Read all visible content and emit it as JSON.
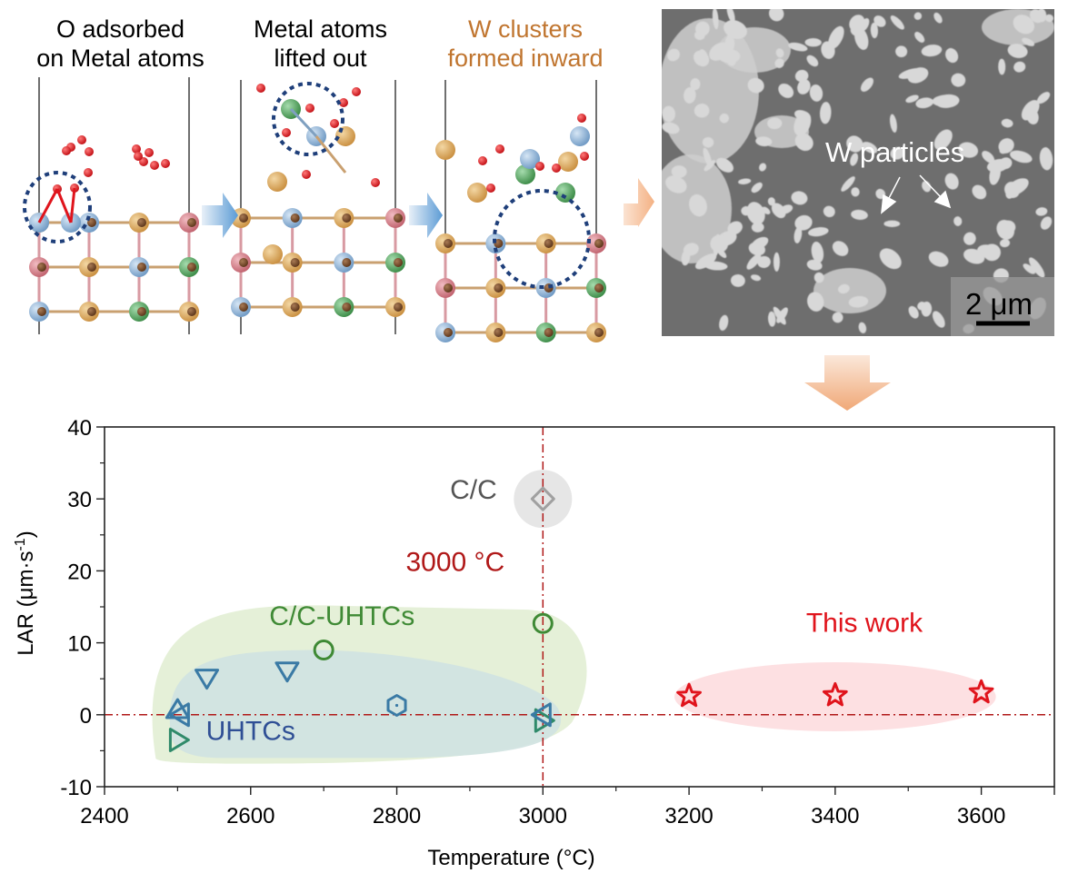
{
  "panels": [
    {
      "title_line1": "O adsorbed",
      "title_line2": "on Metal atoms",
      "title_color": "#000000"
    },
    {
      "title_line1": "Metal atoms",
      "title_line2": "lifted out",
      "title_color": "#000000"
    },
    {
      "title_line1": "W clusters",
      "title_line2": "formed inward",
      "title_color": "#c0752f"
    }
  ],
  "sem_image": {
    "annotation": "W particles",
    "scale_bar": "2 μm"
  },
  "atom_colors": {
    "oxygen": "#e0141c",
    "carbon": "#7a4a2a",
    "gold": "#d9a55a",
    "blue": "#8fb4d8",
    "green": "#4fa35a",
    "pink": "#d9808a",
    "highlight_ring": "#1f3f7a"
  },
  "chart_data": {
    "type": "scatter",
    "title": "",
    "xlabel": "Temperature (°C)",
    "ylabel": "LAR (μm·s⁻¹)",
    "ylabel_base": "LAR (μm·s",
    "ylabel_sup": "-1",
    "ylabel_close": ")",
    "xlim": [
      2400,
      3700
    ],
    "ylim": [
      -10,
      40
    ],
    "x_ticks": [
      2400,
      2600,
      2800,
      3000,
      3200,
      3400,
      3600
    ],
    "x_tick_labels": [
      "2400",
      "2600",
      "2800",
      "3000",
      "3200",
      "3400",
      "3600"
    ],
    "y_ticks": [
      -10,
      0,
      10,
      20,
      30,
      40
    ],
    "y_tick_labels": [
      "-10",
      "0",
      "10",
      "20",
      "30",
      "40"
    ],
    "grid": false,
    "reference_lines": [
      {
        "axis": "x",
        "value": 3000,
        "color": "#b01818",
        "style": "dash-dot"
      },
      {
        "axis": "y",
        "value": 0,
        "color": "#b01818",
        "style": "dash-dot"
      }
    ],
    "annotations": [
      {
        "text": "3000 °C",
        "x": 2880,
        "y": 20,
        "color": "#b01818"
      },
      {
        "text": "C/C",
        "x": 2905,
        "y": 30,
        "color": "#555555"
      },
      {
        "text": "C/C-UHTCs",
        "x": 2725,
        "y": 12.5,
        "color": "#3f8a35"
      },
      {
        "text": "UHTCs",
        "x": 2600,
        "y": -3.5,
        "color": "#2f4f95"
      },
      {
        "text": "This work",
        "x": 3440,
        "y": 11.5,
        "color": "#e0141c"
      }
    ],
    "regions": [
      {
        "name": "C/C",
        "color": "#e6e6e6"
      },
      {
        "name": "C/C-UHTCs",
        "color": "#e4efd6"
      },
      {
        "name": "UHTCs",
        "color": "#d2e4e2"
      },
      {
        "name": "This work",
        "color": "#fde0e2"
      }
    ],
    "series": [
      {
        "name": "C/C",
        "marker": "diamond",
        "color": "#a0a0a0",
        "points": [
          [
            3000,
            30
          ]
        ]
      },
      {
        "name": "C/C-UHTCs",
        "marker": "circle",
        "color": "#3f8a35",
        "points": [
          [
            2700,
            9
          ],
          [
            3000,
            12.7
          ]
        ]
      },
      {
        "name": "C/C-UHTCs (right-triangle)",
        "marker": "triangle-right",
        "color": "#2f8a6a",
        "points": [
          [
            2500,
            -3.5
          ],
          [
            3000,
            -0.8
          ]
        ]
      },
      {
        "name": "UHTCs (down-triangle)",
        "marker": "triangle-down",
        "color": "#3a7aa5",
        "points": [
          [
            2540,
            5.2
          ],
          [
            2650,
            6.2
          ]
        ]
      },
      {
        "name": "UHTCs (up-triangle)",
        "marker": "triangle-up",
        "color": "#3a7aa5",
        "points": [
          [
            2500,
            0.6
          ]
        ]
      },
      {
        "name": "UHTCs (left-triangle)",
        "marker": "triangle-left",
        "color": "#3a7aa5",
        "points": [
          [
            2505,
            0
          ],
          [
            3000,
            0
          ]
        ]
      },
      {
        "name": "UHTCs (hexagon)",
        "marker": "hexagon",
        "color": "#3a7aa5",
        "points": [
          [
            2800,
            1.3
          ]
        ]
      },
      {
        "name": "This work",
        "marker": "star",
        "color": "#e0141c",
        "points": [
          [
            3200,
            2.6
          ],
          [
            3400,
            2.7
          ],
          [
            3600,
            3.1
          ]
        ]
      }
    ]
  }
}
